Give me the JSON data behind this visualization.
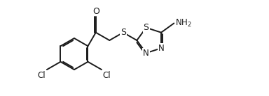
{
  "background": "#ffffff",
  "line_color": "#1a1a1a",
  "line_width": 1.4,
  "font_size": 8.5,
  "figure_size": [
    3.84,
    1.38
  ],
  "dpi": 100,
  "xlim": [
    0.0,
    9.5
  ],
  "ylim": [
    -1.5,
    1.8
  ]
}
